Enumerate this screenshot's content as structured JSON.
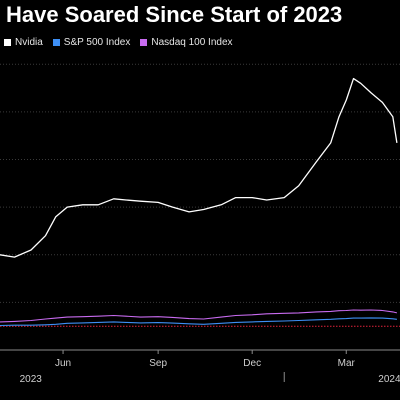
{
  "chart_data": {
    "type": "line",
    "title": "Have Soared Since Start of 2023",
    "xlabel": "",
    "ylabel": "",
    "x": [
      "2023-04-01",
      "2023-04-15",
      "2023-05-01",
      "2023-05-15",
      "2023-05-25",
      "2023-06-05",
      "2023-06-20",
      "2023-07-05",
      "2023-07-20",
      "2023-08-01",
      "2023-08-15",
      "2023-09-01",
      "2023-09-15",
      "2023-10-01",
      "2023-10-15",
      "2023-11-01",
      "2023-11-15",
      "2023-12-01",
      "2023-12-15",
      "2024-01-01",
      "2024-01-15",
      "2024-02-01",
      "2024-02-15",
      "2024-02-23",
      "2024-03-01",
      "2024-03-08",
      "2024-03-15",
      "2024-03-25",
      "2024-04-05",
      "2024-04-15",
      "2024-04-19"
    ],
    "series": [
      {
        "name": "Nvidia",
        "color": "#ffffff",
        "values": [
          400,
          390,
          420,
          480,
          560,
          600,
          610,
          610,
          635,
          630,
          625,
          620,
          600,
          580,
          590,
          610,
          640,
          640,
          630,
          640,
          690,
          790,
          870,
          980,
          1050,
          1140,
          1120,
          1080,
          1040,
          980,
          870
        ]
      },
      {
        "name": "S&P 500 Index",
        "color": "#3d8ff5",
        "values": [
          103,
          104,
          104,
          106,
          108,
          112,
          114,
          116,
          118,
          116,
          114,
          115,
          113,
          110,
          108,
          112,
          116,
          118,
          120,
          122,
          124,
          127,
          129,
          131,
          132,
          134,
          134,
          135,
          134,
          131,
          129
        ]
      },
      {
        "name": "Nasdaq 100 Index",
        "color": "#c86bf0",
        "values": [
          118,
          120,
          124,
          130,
          134,
          138,
          140,
          142,
          145,
          142,
          138,
          140,
          137,
          132,
          130,
          138,
          145,
          148,
          152,
          154,
          156,
          160,
          162,
          165,
          166,
          168,
          167,
          168,
          166,
          160,
          156
        ]
      }
    ],
    "ylim": [
      0,
      1260
    ],
    "yticks": [
      0,
      200,
      400,
      600,
      800,
      1000,
      1200
    ],
    "xticks": [
      {
        "date": "2023-06-01",
        "label": "Jun"
      },
      {
        "date": "2023-09-01",
        "label": "Sep"
      },
      {
        "date": "2023-12-01",
        "label": "Dec"
      },
      {
        "date": "2024-03-01",
        "label": "Mar"
      }
    ],
    "year_labels": [
      {
        "date": "2023-04-20",
        "label": "2023"
      },
      {
        "date": "2024-04-01",
        "label": "2024"
      }
    ],
    "reference_line": {
      "value": 100,
      "color": "#e0233a"
    },
    "grid": true,
    "legend": "top-left"
  }
}
